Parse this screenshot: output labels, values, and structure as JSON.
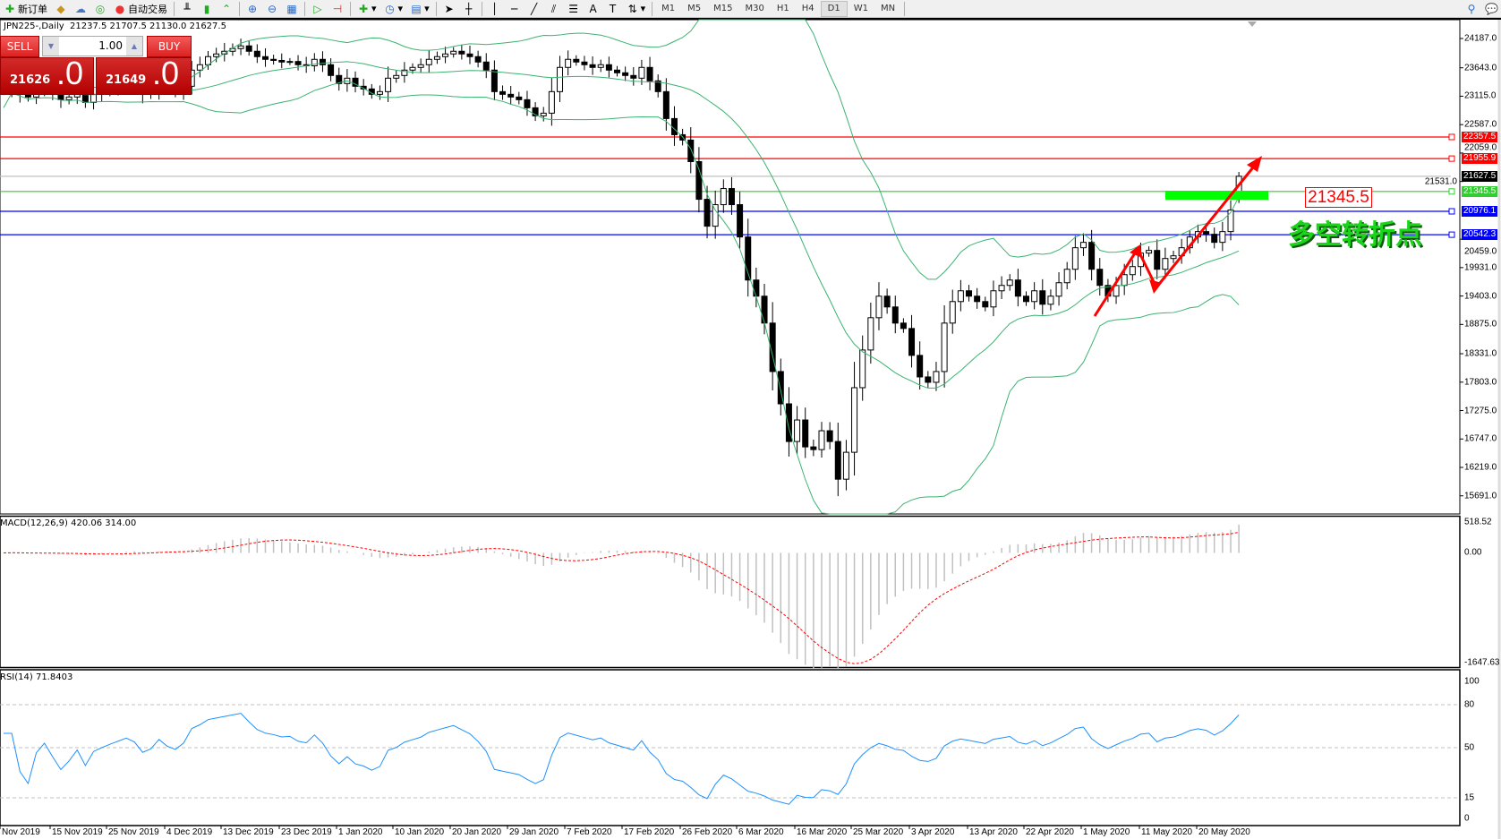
{
  "toolbar": {
    "new_order": "新订单",
    "auto_trading": "自动交易",
    "icons": [
      "new-order-icon",
      "market-watch-icon",
      "data-window-icon",
      "signal-icon",
      "auto-trading-icon",
      "bar-chart-icon",
      "candlestick-icon",
      "line-chart-icon",
      "zoom-in-icon",
      "zoom-out-icon",
      "tile-windows-icon",
      "auto-scroll-icon",
      "chart-shift-icon",
      "indicators-icon",
      "periods-icon",
      "templates-icon",
      "cursor-icon",
      "crosshair-icon",
      "vertical-line-icon",
      "horizontal-line-icon",
      "trendline-icon",
      "equidistant-channel-icon",
      "fibonacci-icon",
      "text-icon",
      "text-label-icon",
      "arrows-icon",
      "search-icon",
      "chat-icon"
    ],
    "timeframes": [
      "M1",
      "M5",
      "M15",
      "M30",
      "H1",
      "H4",
      "D1",
      "W1",
      "MN"
    ],
    "active_timeframe": "D1"
  },
  "chart": {
    "title": "JPN225-,Daily  21237.5 21707.5 21130.0 21627.5",
    "symbol": "JPN225-",
    "period": "Daily",
    "ohlc": {
      "open": 21237.5,
      "high": 21707.5,
      "low": 21130.0,
      "close": 21627.5
    }
  },
  "trade_panel": {
    "sell_label": "SELL",
    "buy_label": "BUY",
    "volume": "1.00",
    "sell_price_main": "21626",
    "sell_price_frac": ".0",
    "buy_price_main": "21649",
    "buy_price_frac": ".0"
  },
  "price_axis": [
    "24187.0",
    "23643.0",
    "23115.0",
    "22587.0",
    "22059.0",
    "21531.0",
    "20459.0",
    "19931.0",
    "19403.0",
    "18875.0",
    "18331.0",
    "17803.0",
    "17275.0",
    "16747.0",
    "16219.0",
    "15691.0"
  ],
  "levels": [
    {
      "price": "22357.5",
      "color": "#ff0000"
    },
    {
      "price": "21955.9",
      "color": "#ff0000"
    },
    {
      "price": "21627.5",
      "color": "#000000",
      "line_color": "#c0c0c0"
    },
    {
      "price": "21345.5",
      "color": "#33cc33"
    },
    {
      "price": "20976.1",
      "color": "#0000ff"
    },
    {
      "price": "20542.3",
      "color": "#0000ff"
    }
  ],
  "annotations": {
    "price_label": "21345.5",
    "text": "多空转折点",
    "highlight_color": "#00ff00",
    "arrow_color": "#ff0000"
  },
  "macd": {
    "label": "MACD(12,26,9) 420.06 314.00",
    "axis": [
      "518.52",
      "0.00",
      "-1647.63"
    ],
    "histogram_color": "#c0c0c0",
    "signal_color": "#ff0000"
  },
  "rsi": {
    "label": "RSI(14) 71.8403",
    "axis": [
      "100",
      "80",
      "50",
      "15",
      "0"
    ],
    "line_color": "#1e90ff"
  },
  "date_axis": [
    "Nov 2019",
    "15 Nov 2019",
    "25 Nov 2019",
    "4 Dec 2019",
    "13 Dec 2019",
    "23 Dec 2019",
    "1 Jan 2020",
    "10 Jan 2020",
    "20 Jan 2020",
    "29 Jan 2020",
    "7 Feb 2020",
    "17 Feb 2020",
    "26 Feb 2020",
    "6 Mar 2020",
    "16 Mar 2020",
    "25 Mar 2020",
    "3 Apr 2020",
    "13 Apr 2020",
    "22 Apr 2020",
    "1 May 2020",
    "11 May 2020",
    "20 May 2020"
  ],
  "chart_data": {
    "type": "candlestick",
    "y_range": [
      15691.0,
      24187.0
    ],
    "bollinger_color": "#3cb371",
    "closes": [
      23200,
      23250,
      23150,
      23100,
      23180,
      23220,
      23150,
      23050,
      23100,
      23180,
      23000,
      23150,
      23200,
      23250,
      23300,
      23350,
      23300,
      23150,
      23200,
      23350,
      23250,
      23200,
      23300,
      23600,
      23700,
      23850,
      23900,
      23950,
      24000,
      24050,
      23950,
      23850,
      23800,
      23780,
      23750,
      23760,
      23700,
      23680,
      23800,
      23700,
      23500,
      23350,
      23450,
      23300,
      23250,
      23150,
      23200,
      23450,
      23500,
      23600,
      23650,
      23700,
      23800,
      23850,
      23900,
      23950,
      23900,
      23850,
      23750,
      23600,
      23200,
      23150,
      23100,
      23050,
      22900,
      22750,
      22800,
      23200,
      23650,
      23800,
      23750,
      23700,
      23650,
      23700,
      23600,
      23550,
      23500,
      23450,
      23650,
      23400,
      23200,
      22700,
      22400,
      22300,
      21900,
      21200,
      20700,
      21100,
      21400,
      21100,
      20500,
      19700,
      19400,
      18900,
      18000,
      17400,
      16700,
      17100,
      16600,
      16550,
      16900,
      16700,
      16000,
      16500,
      17700,
      18400,
      19000,
      19400,
      19200,
      18900,
      18800,
      18300,
      17900,
      17800,
      18000,
      18900,
      19300,
      19500,
      19400,
      19300,
      19200,
      19500,
      19600,
      19700,
      19400,
      19300,
      19500,
      19250,
      19400,
      19650,
      19900,
      20300,
      20400,
      19900,
      19600,
      19400,
      19600,
      19800,
      19950,
      20200,
      20250,
      19900,
      20100,
      20150,
      20300,
      20500,
      20600,
      20550,
      20400,
      20600,
      21000,
      21627.5
    ]
  }
}
